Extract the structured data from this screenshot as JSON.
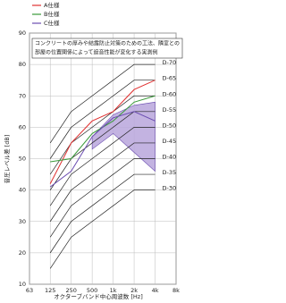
{
  "chart_data": {
    "type": "line",
    "legend": [
      "A仕様",
      "B仕様",
      "C仕様"
    ],
    "annotation": [
      "コンクリートの厚みや結露防止対策のための工法、隣室との",
      "部屋の位置関係によって遮音性能が変化する実測例"
    ],
    "xlabel": "オクターブバンド中心周波数 [Hz]",
    "ylabel": "音圧レベル差 [dB]",
    "x": [
      125,
      250,
      500,
      1000,
      2000,
      4000
    ],
    "series": [
      {
        "name": "A仕様",
        "color": "#e03030",
        "values": [
          42,
          55,
          62,
          65,
          72,
          75
        ]
      },
      {
        "name": "B仕様",
        "color": "#3a9a3a",
        "values": [
          49,
          50,
          58,
          62,
          68,
          70
        ]
      },
      {
        "name": "C仕様",
        "color": "#6a4cb0",
        "values": [
          41,
          46,
          57,
          63,
          65,
          62
        ]
      }
    ],
    "band": {
      "color": "#b8a6dc",
      "x": [
        500,
        1000,
        2000,
        4000
      ],
      "upper": [
        57,
        64,
        67,
        68
      ],
      "lower": [
        53,
        58,
        52,
        46
      ]
    },
    "reference_curves": [
      {
        "name": "D-70",
        "values": [
          55,
          65,
          70,
          75,
          80,
          80
        ]
      },
      {
        "name": "D-65",
        "values": [
          50,
          60,
          65,
          70,
          75,
          75
        ]
      },
      {
        "name": "D-60",
        "values": [
          45,
          55,
          60,
          65,
          70,
          70
        ]
      },
      {
        "name": "D-55",
        "values": [
          40,
          50,
          55,
          60,
          65,
          65
        ]
      },
      {
        "name": "D-50",
        "values": [
          35,
          45,
          50,
          55,
          60,
          60
        ]
      },
      {
        "name": "D-45",
        "values": [
          30,
          40,
          45,
          50,
          55,
          55
        ]
      },
      {
        "name": "D-40",
        "values": [
          25,
          35,
          40,
          45,
          50,
          50
        ]
      },
      {
        "name": "D-35",
        "values": [
          20,
          30,
          35,
          40,
          45,
          45
        ]
      },
      {
        "name": "D-30",
        "values": [
          15,
          25,
          30,
          35,
          40,
          40
        ]
      }
    ],
    "log_x": true,
    "grid": true,
    "xlim": [
      63,
      8000
    ],
    "xticks": [
      63,
      125,
      250,
      500,
      {
        "value": 1000,
        "label": "1k"
      },
      {
        "value": 2000,
        "label": "2k"
      },
      {
        "value": 4000,
        "label": "4k"
      },
      {
        "value": 8000,
        "label": "8k"
      }
    ],
    "ylim": [
      10,
      90
    ],
    "yticks": [
      10,
      20,
      30,
      40,
      50,
      60,
      70,
      80,
      90
    ]
  }
}
